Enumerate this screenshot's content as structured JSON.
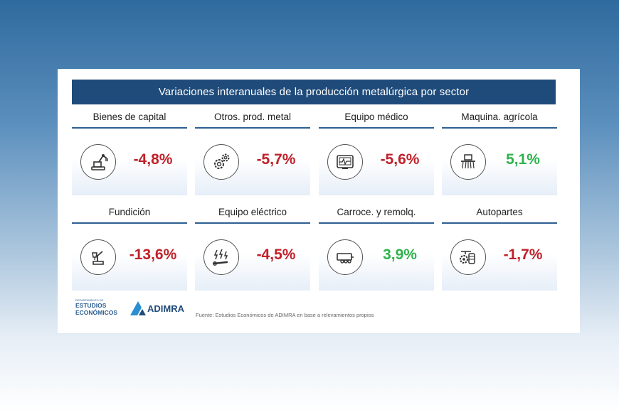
{
  "header": {
    "title": "Variaciones interanuales de la producción metalúrgica por sector"
  },
  "chart_data": {
    "type": "table",
    "title": "Variaciones interanuales de la producción metalúrgica por sector",
    "categories": [
      "Bienes de capital",
      "Otros. prod. metal",
      "Equipo médico",
      "Maquina. agrícola",
      "Fundición",
      "Equipo eléctrico",
      "Carroce. y remolq.",
      "Autopartes"
    ],
    "values": [
      -4.8,
      -5.7,
      -5.6,
      5.1,
      -13.6,
      -4.5,
      3.9,
      -1.7
    ],
    "value_labels": [
      "-4,8%",
      "-5,7%",
      "-5,6%",
      "5,1%",
      "-13,6%",
      "-4,5%",
      "3,9%",
      "-1,7%"
    ],
    "icons": [
      "robot-arm-icon",
      "gears-icon",
      "medical-monitor-icon",
      "seeder-icon",
      "foundry-ladle-icon",
      "electric-wrench-icon",
      "trailer-icon",
      "auto-parts-icon"
    ],
    "colors": {
      "negative": "#c0202a",
      "positive": "#2fb24c"
    }
  },
  "footer": {
    "logo_small": "DEPARTAMENTO DE",
    "logo_line1": "ESTUDIOS",
    "logo_line2": "ECONÓMICOS",
    "adimra": "ADIMRA",
    "source": "Fuente: Estudios Económicos de ADIMRA en base a relevamientos propios"
  },
  "colors": {
    "title_bar": "#1f4b7a",
    "accent": "#2c5f93"
  }
}
